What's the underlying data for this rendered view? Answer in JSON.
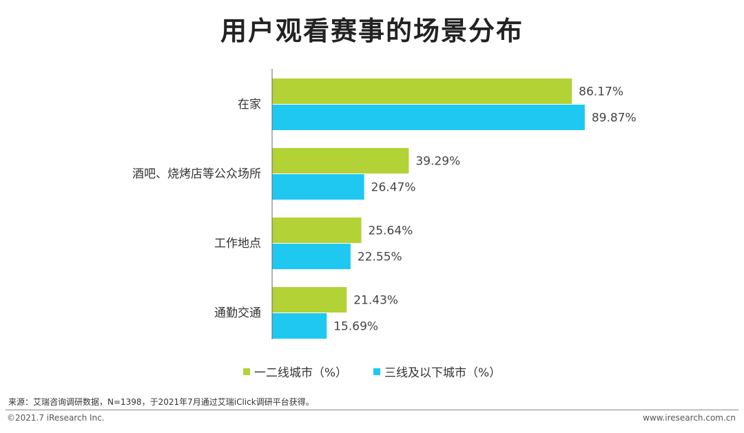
{
  "title": "用户观看赛事的场景分布",
  "chart_data": {
    "type": "bar",
    "orientation": "horizontal",
    "categories": [
      "在家",
      "酒吧、烧烤店等公众场所",
      "工作地点",
      "通勤交通"
    ],
    "series": [
      {
        "name": "一二线城市（%）",
        "values": [
          86.17,
          39.29,
          25.64,
          21.43
        ],
        "color": "#b3d235"
      },
      {
        "name": "三线及以下城市（%）",
        "values": [
          89.87,
          26.47,
          22.55,
          15.69
        ],
        "color": "#1ec8f0"
      }
    ],
    "value_suffix": "%",
    "xlim": [
      0,
      100
    ],
    "grid": false,
    "legend_position": "bottom"
  },
  "source_note": "来源：艾瑞咨询调研数据，N=1398，于2021年7月通过艾瑞iClick调研平台获得。",
  "footer": {
    "copyright": "©2021.7 iResearch Inc.",
    "website": "www.iresearch.com.cn"
  }
}
